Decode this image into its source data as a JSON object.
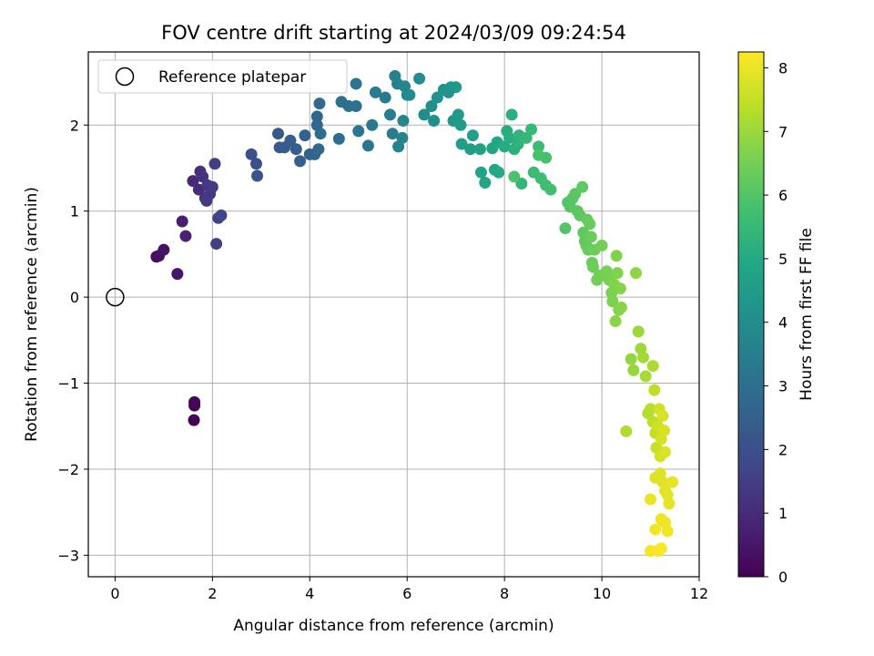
{
  "chart_data": {
    "type": "scatter",
    "title": "FOV centre drift starting at 2024/03/09 09:24:54",
    "xlabel": "Angular distance from reference (arcmin)",
    "ylabel": "Rotation from reference (arcmin)",
    "xlim": [
      -0.55,
      12.0
    ],
    "ylim": [
      -3.25,
      2.85
    ],
    "xticks": [
      0,
      2,
      4,
      6,
      8,
      10,
      12
    ],
    "xtick_labels": [
      "0",
      "2",
      "4",
      "6",
      "8",
      "10",
      "12"
    ],
    "yticks": [
      -3,
      -2,
      -1,
      0,
      1,
      2
    ],
    "ytick_labels": [
      "−3",
      "−2",
      "−1",
      "0",
      "1",
      "2"
    ],
    "grid": true,
    "legend": {
      "position": "top-left",
      "label": "Reference platepar",
      "marker": "open-circle"
    },
    "reference_point": {
      "x": 0,
      "y": 0
    },
    "colorbar": {
      "label": "Hours from first FF file",
      "range": [
        0,
        8.25
      ],
      "ticks": [
        0,
        1,
        2,
        3,
        4,
        5,
        6,
        7,
        8
      ],
      "tick_labels": [
        "0",
        "1",
        "2",
        "3",
        "4",
        "5",
        "6",
        "7",
        "8"
      ],
      "colormap": "viridis"
    },
    "points": [
      [
        1.62,
        -1.43,
        0.05
      ],
      [
        1.63,
        -1.26,
        0.1
      ],
      [
        1.63,
        -1.22,
        0.15
      ],
      [
        0.85,
        0.47,
        0.3
      ],
      [
        0.9,
        0.48,
        0.35
      ],
      [
        1.0,
        0.55,
        0.4
      ],
      [
        1.28,
        0.27,
        0.5
      ],
      [
        1.38,
        0.88,
        0.7
      ],
      [
        1.45,
        0.71,
        0.8
      ],
      [
        1.6,
        1.35,
        0.95
      ],
      [
        1.72,
        1.25,
        1.05
      ],
      [
        1.75,
        1.46,
        1.1
      ],
      [
        1.8,
        1.4,
        1.2
      ],
      [
        1.85,
        1.15,
        1.25
      ],
      [
        1.9,
        1.3,
        1.35
      ],
      [
        1.95,
        1.2,
        1.4
      ],
      [
        2.0,
        1.28,
        1.45
      ],
      [
        2.05,
        1.55,
        1.5
      ],
      [
        2.08,
        0.62,
        1.55
      ],
      [
        2.12,
        0.92,
        1.6
      ],
      [
        2.18,
        0.95,
        1.7
      ],
      [
        1.88,
        1.12,
        1.4
      ],
      [
        2.8,
        1.66,
        2.0
      ],
      [
        2.9,
        1.55,
        2.05
      ],
      [
        2.92,
        1.41,
        2.1
      ],
      [
        3.35,
        1.9,
        2.25
      ],
      [
        3.38,
        1.74,
        2.3
      ],
      [
        3.48,
        1.74,
        2.35
      ],
      [
        3.6,
        1.82,
        2.4
      ],
      [
        3.72,
        1.72,
        2.45
      ],
      [
        3.8,
        1.58,
        2.5
      ],
      [
        3.9,
        1.88,
        2.55
      ],
      [
        4.0,
        1.66,
        2.6
      ],
      [
        4.1,
        1.66,
        2.65
      ],
      [
        4.15,
        2.1,
        2.7
      ],
      [
        4.15,
        2.0,
        2.75
      ],
      [
        4.18,
        1.72,
        2.8
      ],
      [
        4.2,
        2.25,
        2.85
      ],
      [
        4.22,
        1.9,
        2.9
      ],
      [
        4.6,
        1.84,
        2.95
      ],
      [
        4.65,
        2.27,
        3.0
      ],
      [
        4.8,
        2.22,
        3.05
      ],
      [
        4.95,
        2.22,
        3.1
      ],
      [
        4.95,
        2.48,
        3.15
      ],
      [
        5.0,
        1.93,
        3.2
      ],
      [
        5.2,
        1.76,
        3.25
      ],
      [
        5.28,
        2.0,
        3.3
      ],
      [
        5.35,
        2.38,
        3.35
      ],
      [
        5.55,
        2.32,
        3.4
      ],
      [
        5.65,
        2.12,
        3.45
      ],
      [
        5.7,
        1.9,
        3.5
      ],
      [
        5.75,
        2.57,
        3.55
      ],
      [
        5.8,
        2.48,
        3.6
      ],
      [
        5.82,
        1.75,
        3.65
      ],
      [
        5.9,
        1.85,
        3.7
      ],
      [
        5.92,
        2.05,
        3.75
      ],
      [
        5.95,
        2.45,
        3.8
      ],
      [
        6.0,
        2.35,
        3.85
      ],
      [
        6.05,
        2.35,
        3.9
      ],
      [
        6.25,
        2.54,
        3.95
      ],
      [
        6.35,
        2.12,
        4.0
      ],
      [
        6.5,
        2.22,
        4.05
      ],
      [
        6.55,
        2.05,
        4.1
      ],
      [
        6.62,
        2.32,
        4.15
      ],
      [
        6.75,
        2.41,
        4.2
      ],
      [
        6.85,
        2.38,
        4.25
      ],
      [
        6.9,
        2.44,
        4.3
      ],
      [
        6.95,
        2.05,
        4.35
      ],
      [
        7.0,
        2.44,
        4.4
      ],
      [
        7.05,
        2.12,
        4.45
      ],
      [
        7.1,
        2.0,
        4.5
      ],
      [
        7.12,
        1.78,
        4.55
      ],
      [
        7.3,
        1.72,
        4.6
      ],
      [
        7.35,
        1.88,
        4.65
      ],
      [
        7.5,
        1.72,
        4.7
      ],
      [
        7.52,
        1.45,
        4.75
      ],
      [
        7.6,
        1.33,
        4.8
      ],
      [
        7.75,
        1.73,
        4.85
      ],
      [
        7.8,
        1.48,
        4.9
      ],
      [
        7.85,
        1.8,
        4.95
      ],
      [
        7.88,
        1.45,
        5.0
      ],
      [
        8.0,
        1.75,
        5.05
      ],
      [
        8.05,
        1.93,
        5.1
      ],
      [
        8.1,
        1.85,
        5.15
      ],
      [
        8.15,
        2.12,
        5.2
      ],
      [
        8.2,
        1.72,
        5.25
      ],
      [
        8.28,
        1.78,
        5.3
      ],
      [
        8.3,
        1.88,
        5.35
      ],
      [
        8.35,
        1.32,
        5.4
      ],
      [
        8.45,
        1.85,
        5.45
      ],
      [
        8.55,
        1.95,
        5.5
      ],
      [
        8.6,
        1.45,
        5.55
      ],
      [
        8.7,
        1.75,
        5.6
      ],
      [
        8.75,
        1.38,
        5.65
      ],
      [
        8.85,
        1.3,
        5.7
      ],
      [
        8.95,
        1.25,
        5.75
      ],
      [
        8.85,
        1.62,
        5.8
      ],
      [
        8.7,
        1.65,
        5.85
      ],
      [
        8.2,
        1.4,
        5.9
      ],
      [
        9.25,
        0.8,
        6.0
      ],
      [
        9.3,
        1.1,
        6.02
      ],
      [
        9.35,
        1.05,
        6.05
      ],
      [
        9.4,
        1.15,
        6.07
      ],
      [
        9.45,
        1.2,
        6.1
      ],
      [
        9.5,
        1.0,
        6.12
      ],
      [
        9.55,
        0.95,
        6.15
      ],
      [
        9.6,
        1.28,
        6.17
      ],
      [
        9.62,
        0.75,
        6.2
      ],
      [
        9.65,
        0.65,
        6.22
      ],
      [
        9.68,
        0.6,
        6.25
      ],
      [
        9.7,
        0.9,
        6.27
      ],
      [
        9.72,
        0.55,
        6.3
      ],
      [
        9.75,
        0.85,
        6.32
      ],
      [
        9.78,
        0.7,
        6.35
      ],
      [
        9.8,
        0.4,
        6.37
      ],
      [
        9.82,
        0.35,
        6.4
      ],
      [
        9.85,
        0.55,
        6.42
      ],
      [
        9.9,
        0.2,
        6.45
      ],
      [
        9.95,
        0.25,
        6.47
      ],
      [
        10.0,
        0.6,
        6.5
      ],
      [
        10.05,
        0.25,
        6.52
      ],
      [
        10.1,
        0.3,
        6.55
      ],
      [
        10.15,
        0.2,
        6.57
      ],
      [
        10.2,
        0.05,
        6.6
      ],
      [
        10.22,
        -0.05,
        6.62
      ],
      [
        10.25,
        0.15,
        6.65
      ],
      [
        10.3,
        0.48,
        6.67
      ],
      [
        10.32,
        0.28,
        6.7
      ],
      [
        10.35,
        -0.15,
        6.72
      ],
      [
        10.38,
        0.1,
        6.75
      ],
      [
        10.4,
        -0.12,
        6.77
      ],
      [
        10.28,
        -0.28,
        6.8
      ],
      [
        10.7,
        0.28,
        6.82
      ],
      [
        10.6,
        -0.72,
        6.9
      ],
      [
        10.65,
        -0.85,
        6.95
      ],
      [
        10.75,
        -0.4,
        7.0
      ],
      [
        10.8,
        -0.6,
        7.05
      ],
      [
        10.85,
        -0.7,
        7.1
      ],
      [
        10.9,
        -0.92,
        7.15
      ],
      [
        11.05,
        -0.8,
        7.2
      ],
      [
        10.5,
        -1.56,
        7.25
      ],
      [
        10.95,
        -1.35,
        7.3
      ],
      [
        11.0,
        -1.3,
        7.35
      ],
      [
        11.05,
        -1.45,
        7.4
      ],
      [
        11.08,
        -1.08,
        7.45
      ],
      [
        11.1,
        -1.58,
        7.5
      ],
      [
        11.12,
        -1.75,
        7.55
      ],
      [
        11.15,
        -1.5,
        7.6
      ],
      [
        11.18,
        -1.3,
        7.65
      ],
      [
        11.2,
        -1.85,
        7.7
      ],
      [
        11.22,
        -1.65,
        7.72
      ],
      [
        11.25,
        -1.38,
        7.75
      ],
      [
        11.28,
        -1.55,
        7.77
      ],
      [
        11.3,
        -1.8,
        7.8
      ],
      [
        11.1,
        -2.1,
        7.82
      ],
      [
        11.2,
        -2.05,
        7.85
      ],
      [
        11.25,
        -2.15,
        7.87
      ],
      [
        11.3,
        -2.25,
        7.9
      ],
      [
        11.35,
        -2.3,
        7.92
      ],
      [
        11.38,
        -2.4,
        7.95
      ],
      [
        11.45,
        -2.15,
        7.97
      ],
      [
        11.0,
        -2.35,
        8.0
      ],
      [
        11.22,
        -2.58,
        8.05
      ],
      [
        11.3,
        -2.62,
        8.08
      ],
      [
        11.35,
        -2.72,
        8.1
      ],
      [
        11.1,
        -2.7,
        8.12
      ],
      [
        11.0,
        -2.95,
        8.15
      ],
      [
        11.15,
        -2.95,
        8.18
      ],
      [
        11.22,
        -2.92,
        8.2
      ]
    ]
  }
}
